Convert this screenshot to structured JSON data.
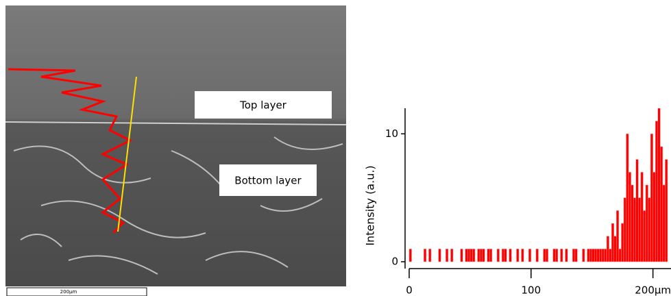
{
  "image_labels": {
    "top_layer": "Top layer",
    "bottom_layer": "Bottom layer",
    "scale_bar": "200µm"
  },
  "chart_data": {
    "type": "histogram",
    "y_label": "Intensity (a.u.)",
    "color": "#ff0000",
    "bins": [
      0,
      2,
      4,
      6,
      8,
      10,
      12,
      14,
      16,
      18,
      20,
      22,
      24,
      26,
      28,
      30,
      32,
      34,
      36,
      38,
      40,
      42,
      44,
      46,
      48,
      50,
      52,
      54,
      56,
      58,
      60,
      62,
      64,
      66,
      68,
      70,
      72,
      74,
      76,
      78,
      80,
      82,
      84,
      86,
      88,
      90,
      92,
      94,
      96,
      98,
      100,
      102,
      104,
      106,
      108,
      110,
      112,
      114,
      116,
      118,
      120,
      122,
      124,
      126,
      128,
      130,
      132,
      134,
      136,
      138,
      140,
      142,
      144,
      146,
      148,
      150,
      152,
      154,
      156,
      158,
      160,
      162,
      164,
      166,
      168,
      170,
      172,
      174,
      176,
      178,
      180,
      182,
      184,
      186,
      188,
      190,
      192,
      194,
      196,
      198,
      200,
      202,
      204,
      206,
      208,
      210,
      212
    ],
    "values": [
      1,
      0,
      0,
      0,
      0,
      0,
      1,
      0,
      1,
      0,
      0,
      0,
      1,
      0,
      0,
      1,
      0,
      1,
      0,
      0,
      0,
      1,
      0,
      1,
      1,
      1,
      1,
      0,
      1,
      1,
      1,
      0,
      1,
      1,
      0,
      0,
      1,
      0,
      1,
      1,
      0,
      1,
      0,
      0,
      1,
      0,
      1,
      0,
      0,
      1,
      0,
      0,
      1,
      0,
      0,
      1,
      1,
      0,
      0,
      1,
      1,
      0,
      1,
      0,
      1,
      0,
      0,
      1,
      1,
      0,
      0,
      1,
      0,
      1,
      1,
      1,
      1,
      1,
      1,
      1,
      1,
      2,
      1,
      3,
      2,
      4,
      1,
      3,
      5,
      10,
      7,
      6,
      5,
      8,
      5,
      7,
      4,
      6,
      5,
      10,
      7,
      11,
      12,
      9,
      6,
      8
    ],
    "xlim": [
      0,
      212
    ],
    "ylim": [
      0,
      12
    ],
    "xticks": [
      0,
      100,
      {
        "value": 200,
        "label": "200µm"
      }
    ],
    "yticks": [
      0,
      10
    ]
  }
}
